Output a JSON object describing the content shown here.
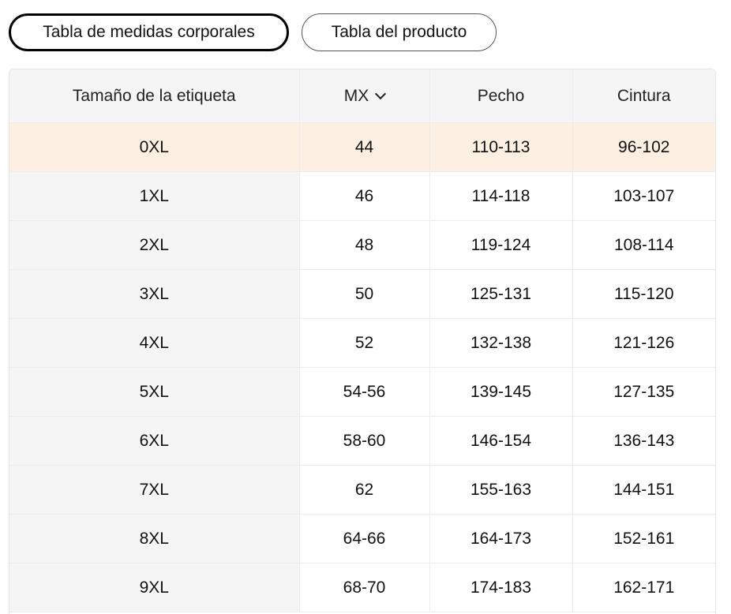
{
  "tabs": [
    {
      "label": "Tabla de medidas corporales",
      "active": true
    },
    {
      "label": "Tabla del producto",
      "active": false
    }
  ],
  "table": {
    "headers": {
      "label": "Tamaño de la etiqueta",
      "region": "MX",
      "chest": "Pecho",
      "waist": "Cintura"
    },
    "region_dropdown_icon": "chevron-down-icon",
    "highlight_color": "#fdf0e2",
    "rows": [
      [
        "0XL",
        "44",
        "110-113",
        "96-102"
      ],
      [
        "1XL",
        "46",
        "114-118",
        "103-107"
      ],
      [
        "2XL",
        "48",
        "119-124",
        "108-114"
      ],
      [
        "3XL",
        "50",
        "125-131",
        "115-120"
      ],
      [
        "4XL",
        "52",
        "132-138",
        "121-126"
      ],
      [
        "5XL",
        "54-56",
        "139-145",
        "127-135"
      ],
      [
        "6XL",
        "58-60",
        "146-154",
        "136-143"
      ],
      [
        "7XL",
        "62",
        "155-163",
        "144-151"
      ],
      [
        "8XL",
        "64-66",
        "164-173",
        "152-161"
      ],
      [
        "9XL",
        "68-70",
        "174-183",
        "162-171"
      ]
    ]
  }
}
